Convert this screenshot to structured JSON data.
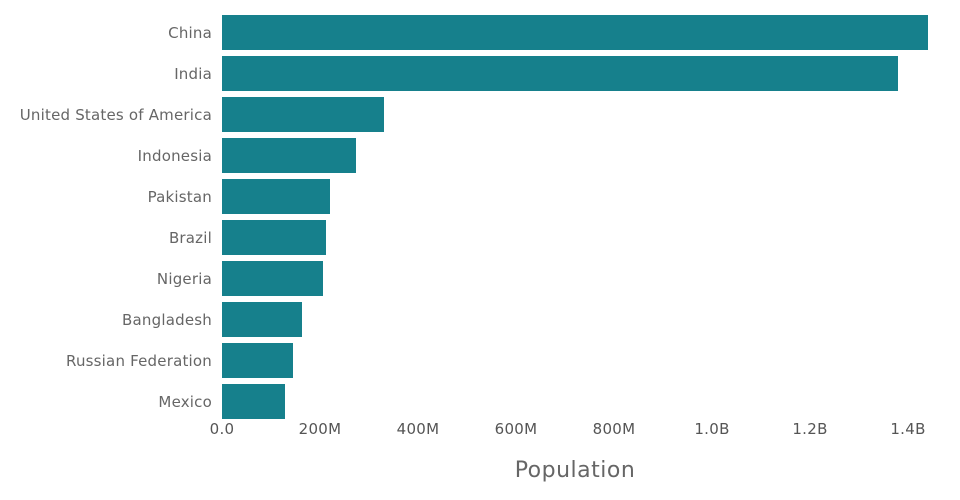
{
  "chart_data": {
    "type": "bar",
    "orientation": "horizontal",
    "title": "",
    "xlabel": "Population",
    "ylabel": "",
    "categories": [
      "China",
      "India",
      "United States of America",
      "Indonesia",
      "Pakistan",
      "Brazil",
      "Nigeria",
      "Bangladesh",
      "Russian Federation",
      "Mexico"
    ],
    "values": [
      1440000000,
      1380000000,
      331000000,
      273000000,
      220000000,
      212000000,
      206000000,
      164000000,
      145000000,
      128000000
    ],
    "x_ticks": [
      {
        "value": 0,
        "label": "0.0"
      },
      {
        "value": 200000000,
        "label": "200M"
      },
      {
        "value": 400000000,
        "label": "400M"
      },
      {
        "value": 600000000,
        "label": "600M"
      },
      {
        "value": 800000000,
        "label": "800M"
      },
      {
        "value": 1000000000,
        "label": "1.0B"
      },
      {
        "value": 1200000000,
        "label": "1.2B"
      },
      {
        "value": 1400000000,
        "label": "1.4B"
      }
    ],
    "xlim": [
      0,
      1450000000
    ],
    "grid": false,
    "legend": false,
    "bar_color": "#16808C",
    "label_color": "#666666"
  }
}
